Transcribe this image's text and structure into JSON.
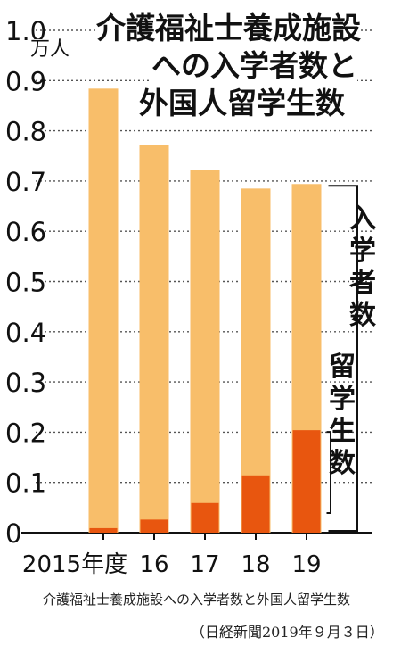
{
  "chart_data": {
    "type": "bar",
    "title_lines": [
      "介護福祉士養成施設",
      "への入学者数と",
      "外国人留学生数"
    ],
    "unit": "万人",
    "categories": [
      "2015年度",
      "16",
      "17",
      "18",
      "19"
    ],
    "series": [
      {
        "name": "入学者数",
        "values": [
          0.884,
          0.772,
          0.722,
          0.685,
          0.694
        ],
        "color": "#F8BE6A"
      },
      {
        "name": "留学生数",
        "values": [
          0.009,
          0.026,
          0.059,
          0.114,
          0.204
        ],
        "color": "#E8560F"
      }
    ],
    "yticks": [
      "1.0",
      "0.9",
      "0.8",
      "0.7",
      "0.6",
      "0.5",
      "0.4",
      "0.3",
      "0.2",
      "0.1",
      "0"
    ],
    "ylim": [
      0,
      1.0
    ],
    "grid": true,
    "annotations": [
      {
        "text": "入学者数",
        "series": "入学者数"
      },
      {
        "text": "留学生数",
        "series": "留学生数"
      }
    ]
  },
  "caption": "介護福祉士養成施設への入学者数と外国人留学生数",
  "credit": "（日経新聞2019年９月３日）"
}
